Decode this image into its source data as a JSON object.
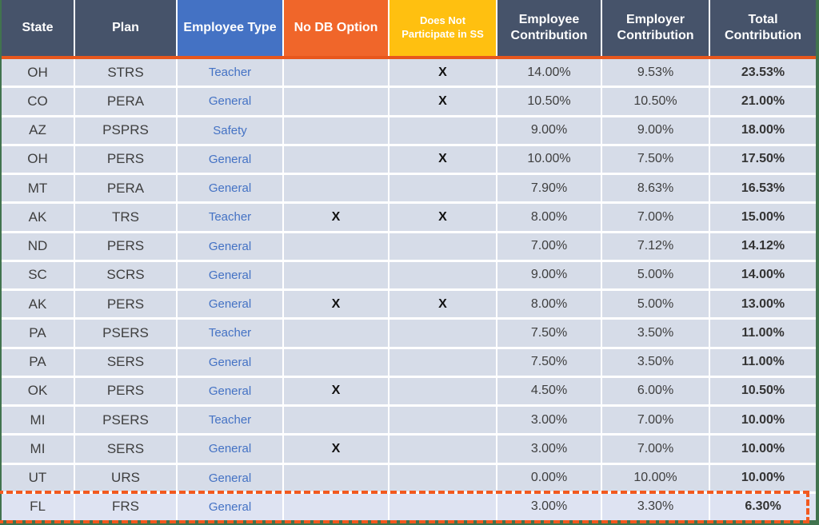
{
  "table": {
    "columns": [
      {
        "label": "State"
      },
      {
        "label": "Plan"
      },
      {
        "label": "Employee Type"
      },
      {
        "label": "No DB Option"
      },
      {
        "label": "Does Not Participate in SS"
      },
      {
        "label": "Employee Contribution"
      },
      {
        "label": "Employer Contribution"
      },
      {
        "label": "Total Contribution"
      }
    ],
    "rows": [
      {
        "state": "OH",
        "plan": "STRS",
        "employee_type": "Teacher",
        "no_db_option": "",
        "no_ss": "X",
        "employee_contribution": "14.00%",
        "employer_contribution": "9.53%",
        "total_contribution": "23.53%"
      },
      {
        "state": "CO",
        "plan": "PERA",
        "employee_type": "General",
        "no_db_option": "",
        "no_ss": "X",
        "employee_contribution": "10.50%",
        "employer_contribution": "10.50%",
        "total_contribution": "21.00%"
      },
      {
        "state": "AZ",
        "plan": "PSPRS",
        "employee_type": "Safety",
        "no_db_option": "",
        "no_ss": "",
        "employee_contribution": "9.00%",
        "employer_contribution": "9.00%",
        "total_contribution": "18.00%"
      },
      {
        "state": "OH",
        "plan": "PERS",
        "employee_type": "General",
        "no_db_option": "",
        "no_ss": "X",
        "employee_contribution": "10.00%",
        "employer_contribution": "7.50%",
        "total_contribution": "17.50%"
      },
      {
        "state": "MT",
        "plan": "PERA",
        "employee_type": "General",
        "no_db_option": "",
        "no_ss": "",
        "employee_contribution": "7.90%",
        "employer_contribution": "8.63%",
        "total_contribution": "16.53%"
      },
      {
        "state": "AK",
        "plan": "TRS",
        "employee_type": "Teacher",
        "no_db_option": "X",
        "no_ss": "X",
        "employee_contribution": "8.00%",
        "employer_contribution": "7.00%",
        "total_contribution": "15.00%"
      },
      {
        "state": "ND",
        "plan": "PERS",
        "employee_type": "General",
        "no_db_option": "",
        "no_ss": "",
        "employee_contribution": "7.00%",
        "employer_contribution": "7.12%",
        "total_contribution": "14.12%"
      },
      {
        "state": "SC",
        "plan": "SCRS",
        "employee_type": "General",
        "no_db_option": "",
        "no_ss": "",
        "employee_contribution": "9.00%",
        "employer_contribution": "5.00%",
        "total_contribution": "14.00%"
      },
      {
        "state": "AK",
        "plan": "PERS",
        "employee_type": "General",
        "no_db_option": "X",
        "no_ss": "X",
        "employee_contribution": "8.00%",
        "employer_contribution": "5.00%",
        "total_contribution": "13.00%"
      },
      {
        "state": "PA",
        "plan": "PSERS",
        "employee_type": "Teacher",
        "no_db_option": "",
        "no_ss": "",
        "employee_contribution": "7.50%",
        "employer_contribution": "3.50%",
        "total_contribution": "11.00%"
      },
      {
        "state": "PA",
        "plan": "SERS",
        "employee_type": "General",
        "no_db_option": "",
        "no_ss": "",
        "employee_contribution": "7.50%",
        "employer_contribution": "3.50%",
        "total_contribution": "11.00%"
      },
      {
        "state": "OK",
        "plan": "PERS",
        "employee_type": "General",
        "no_db_option": "X",
        "no_ss": "",
        "employee_contribution": "4.50%",
        "employer_contribution": "6.00%",
        "total_contribution": "10.50%"
      },
      {
        "state": "MI",
        "plan": "PSERS",
        "employee_type": "Teacher",
        "no_db_option": "",
        "no_ss": "",
        "employee_contribution": "3.00%",
        "employer_contribution": "7.00%",
        "total_contribution": "10.00%"
      },
      {
        "state": "MI",
        "plan": "SERS",
        "employee_type": "General",
        "no_db_option": "X",
        "no_ss": "",
        "employee_contribution": "3.00%",
        "employer_contribution": "7.00%",
        "total_contribution": "10.00%"
      },
      {
        "state": "UT",
        "plan": "URS",
        "employee_type": "General",
        "no_db_option": "",
        "no_ss": "",
        "employee_contribution": "0.00%",
        "employer_contribution": "10.00%",
        "total_contribution": "10.00%"
      },
      {
        "state": "FL",
        "plan": "FRS",
        "employee_type": "General",
        "no_db_option": "",
        "no_ss": "",
        "employee_contribution": "3.00%",
        "employer_contribution": "3.30%",
        "total_contribution": "6.30%"
      }
    ],
    "highlighted_row_index": 15,
    "highlight_style": "orange-dashed-border"
  },
  "colors": {
    "header_dark": "#46536A",
    "header_blue": "#4472C4",
    "header_orange": "#F0662A",
    "header_yellow": "#FFC010",
    "accent_line": "#E8571C",
    "row_background": "#D6DCE8",
    "highlight_row_background": "#DEE3F2",
    "highlight_border": "#F2591F",
    "page_background_green": "#41734E",
    "employee_type_text": "#4472C4"
  },
  "chart_data": {
    "type": "table",
    "title": "",
    "columns": [
      "State",
      "Plan",
      "Employee Type",
      "No DB Option",
      "Does Not Participate in SS",
      "Employee Contribution",
      "Employer Contribution",
      "Total Contribution"
    ],
    "rows": [
      [
        "OH",
        "STRS",
        "Teacher",
        "",
        "X",
        "14.00%",
        "9.53%",
        "23.53%"
      ],
      [
        "CO",
        "PERA",
        "General",
        "",
        "X",
        "10.50%",
        "10.50%",
        "21.00%"
      ],
      [
        "AZ",
        "PSPRS",
        "Safety",
        "",
        "",
        "9.00%",
        "9.00%",
        "18.00%"
      ],
      [
        "OH",
        "PERS",
        "General",
        "",
        "X",
        "10.00%",
        "7.50%",
        "17.50%"
      ],
      [
        "MT",
        "PERA",
        "General",
        "",
        "",
        "7.90%",
        "8.63%",
        "16.53%"
      ],
      [
        "AK",
        "TRS",
        "Teacher",
        "X",
        "X",
        "8.00%",
        "7.00%",
        "15.00%"
      ],
      [
        "ND",
        "PERS",
        "General",
        "",
        "",
        "7.00%",
        "7.12%",
        "14.12%"
      ],
      [
        "SC",
        "SCRS",
        "General",
        "",
        "",
        "9.00%",
        "5.00%",
        "14.00%"
      ],
      [
        "AK",
        "PERS",
        "General",
        "X",
        "X",
        "8.00%",
        "5.00%",
        "13.00%"
      ],
      [
        "PA",
        "PSERS",
        "Teacher",
        "",
        "",
        "7.50%",
        "3.50%",
        "11.00%"
      ],
      [
        "PA",
        "SERS",
        "General",
        "",
        "",
        "7.50%",
        "3.50%",
        "11.00%"
      ],
      [
        "OK",
        "PERS",
        "General",
        "X",
        "",
        "4.50%",
        "6.00%",
        "10.50%"
      ],
      [
        "MI",
        "PSERS",
        "Teacher",
        "",
        "",
        "3.00%",
        "7.00%",
        "10.00%"
      ],
      [
        "MI",
        "SERS",
        "General",
        "X",
        "",
        "3.00%",
        "7.00%",
        "10.00%"
      ],
      [
        "UT",
        "URS",
        "General",
        "",
        "",
        "0.00%",
        "10.00%",
        "10.00%"
      ],
      [
        "FL",
        "FRS",
        "General",
        "",
        "",
        "3.00%",
        "3.30%",
        "6.30%"
      ]
    ]
  }
}
